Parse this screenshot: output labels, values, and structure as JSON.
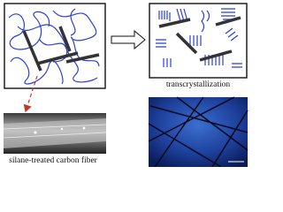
{
  "panels": {
    "top_right_label": "transcrystallization",
    "bottom_left_label": "silane-treated carbon fiber"
  }
}
